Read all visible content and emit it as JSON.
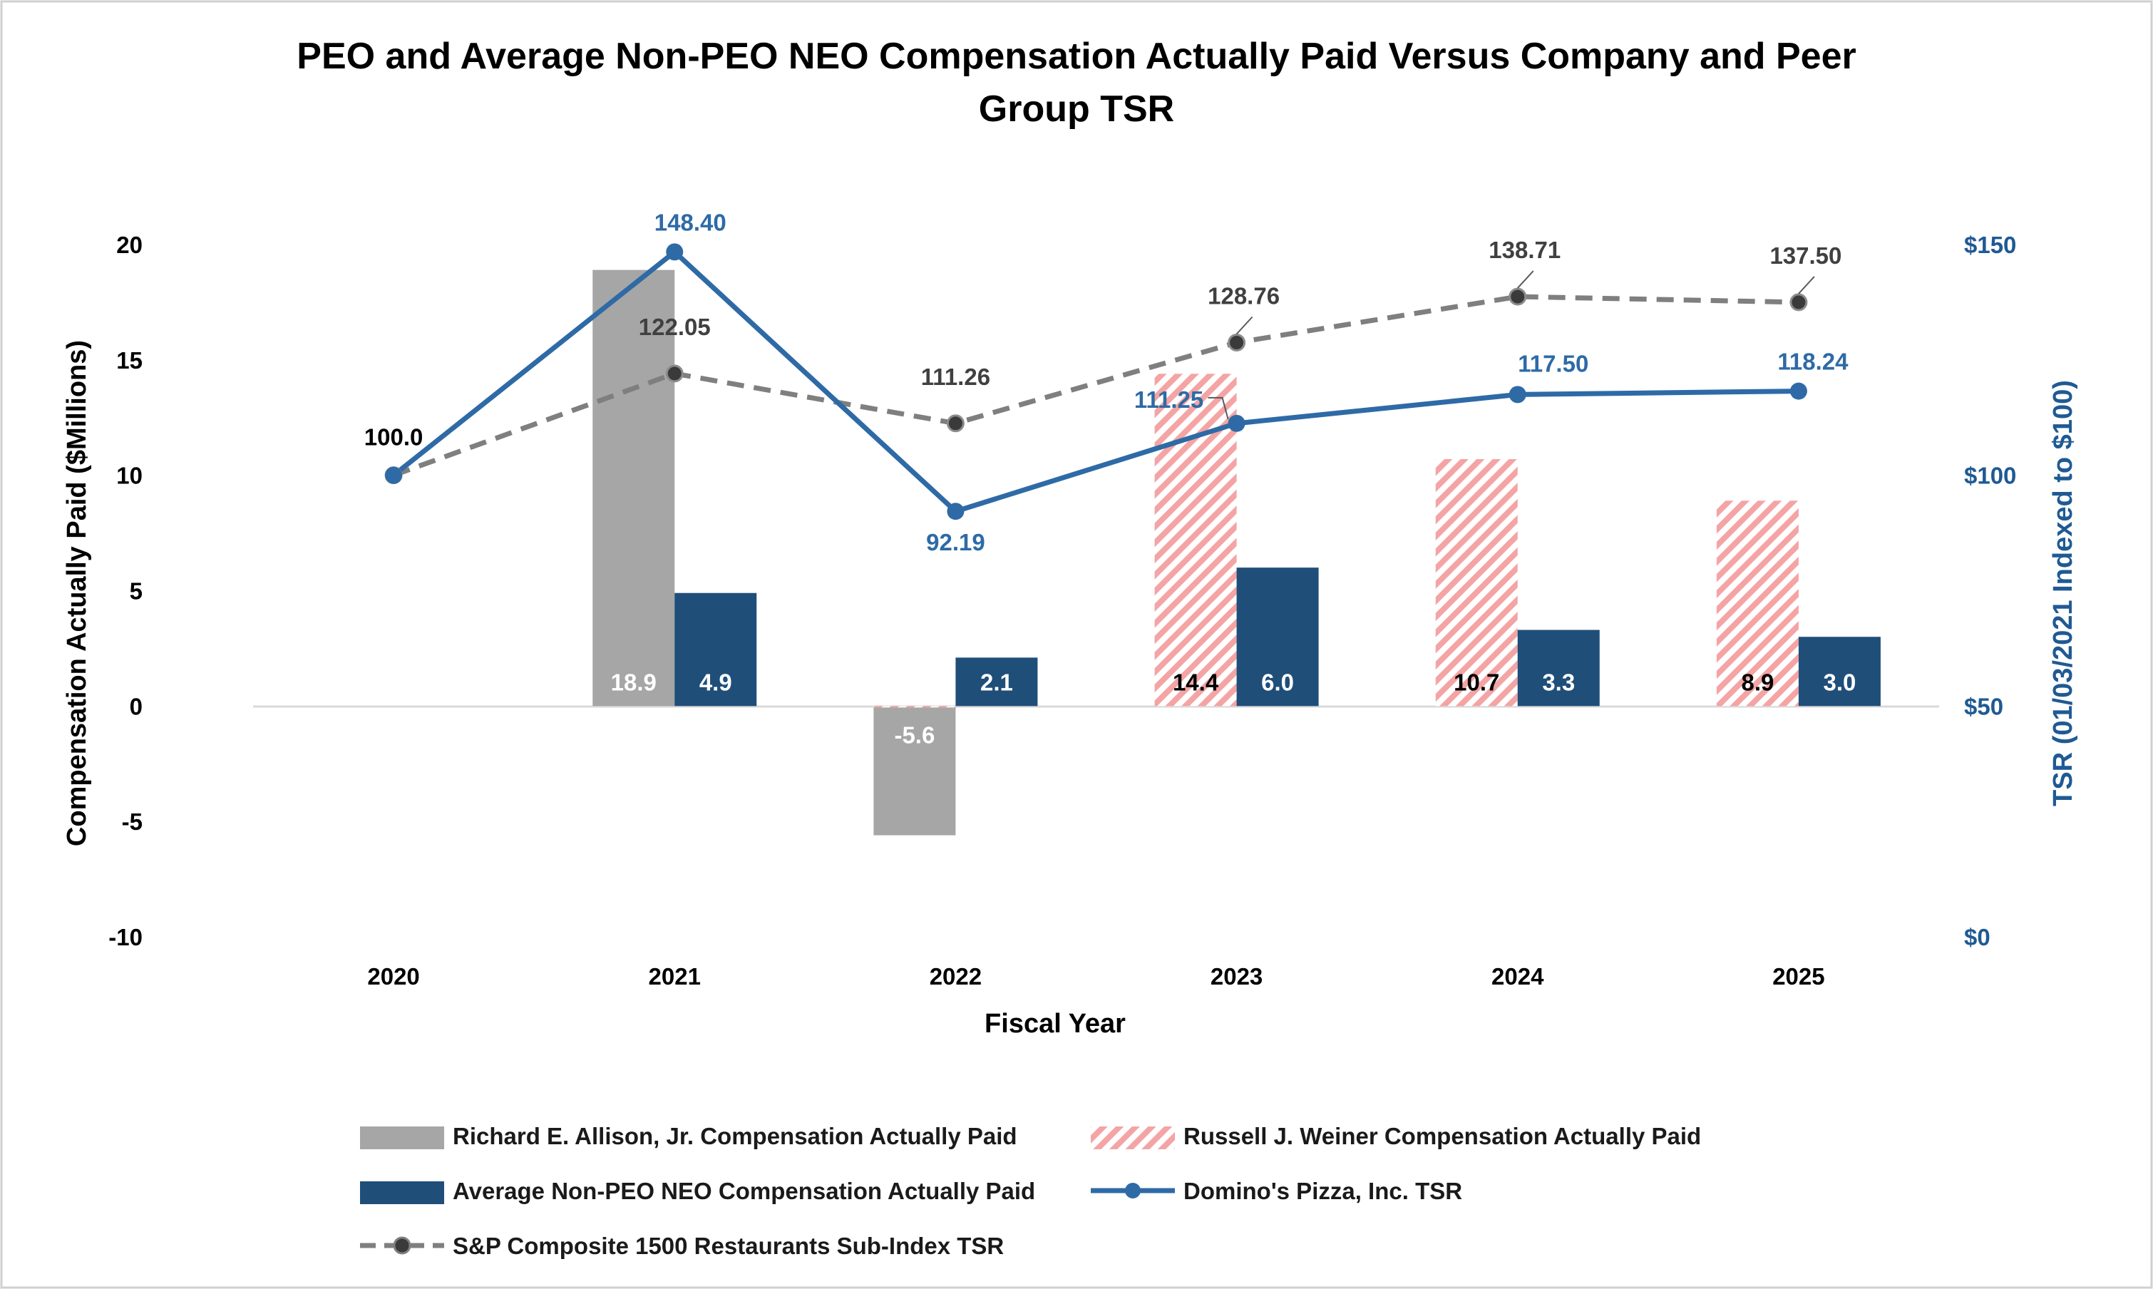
{
  "chart_data": {
    "type": "bar+line",
    "title_line1": "PEO and Average Non-PEO NEO Compensation Actually Paid Versus Company and Peer",
    "title_line2": "Group TSR",
    "xlabel": "Fiscal Year",
    "ylabel": "Compensation Actually Paid ($Millions)",
    "y2label": "TSR (01/03/2021 Indexed to $100)",
    "categories": [
      "2020",
      "2021",
      "2022",
      "2023",
      "2024",
      "2025"
    ],
    "ylim": [
      -10,
      20
    ],
    "yticks": [
      "20",
      "15",
      "10",
      "5",
      "0",
      "-5",
      "-10"
    ],
    "y2lim": [
      0,
      150
    ],
    "y2ticks": [
      "$150",
      "$100",
      "$50",
      "$0"
    ],
    "bar_series": [
      {
        "name": "Richard E. Allison, Jr. Compensation Actually Paid",
        "color": "#a6a6a6",
        "pattern": "solid",
        "values": [
          null,
          18.9,
          -5.6,
          null,
          null,
          null
        ],
        "labels": [
          null,
          "18.9",
          "-5.6",
          null,
          null,
          null
        ]
      },
      {
        "name": "Russell J. Weiner Compensation Actually Paid",
        "color": "#f4a4a4",
        "pattern": "hatched",
        "values": [
          null,
          null,
          0,
          14.4,
          10.7,
          8.9
        ],
        "labels": [
          null,
          null,
          null,
          "14.4",
          "10.7",
          "8.9"
        ]
      },
      {
        "name": "Average Non-PEO NEO Compensation Actually Paid",
        "color": "#1f4e79",
        "pattern": "solid",
        "values": [
          null,
          4.9,
          2.1,
          6.0,
          3.3,
          3.0
        ],
        "labels": [
          null,
          "4.9",
          "2.1",
          "6.0",
          "3.3",
          "3.0"
        ]
      }
    ],
    "line_series": [
      {
        "name": "Domino's Pizza, Inc. TSR",
        "color": "#2e6aa6",
        "style": "solid",
        "values": [
          100.0,
          148.4,
          92.19,
          111.25,
          117.5,
          118.24
        ],
        "labels": [
          null,
          "148.40",
          "92.19",
          "111.25",
          "117.50",
          "118.24"
        ]
      },
      {
        "name": "S&P Composite 1500 Restaurants Sub-Index TSR",
        "color": "#7f7f7f",
        "style": "dashed",
        "values": [
          100.0,
          122.05,
          111.26,
          128.76,
          138.71,
          137.5
        ],
        "labels": [
          "100.0",
          "122.05",
          "111.26",
          "128.76",
          "138.71",
          "137.50"
        ]
      }
    ],
    "legend_position": "bottom"
  }
}
